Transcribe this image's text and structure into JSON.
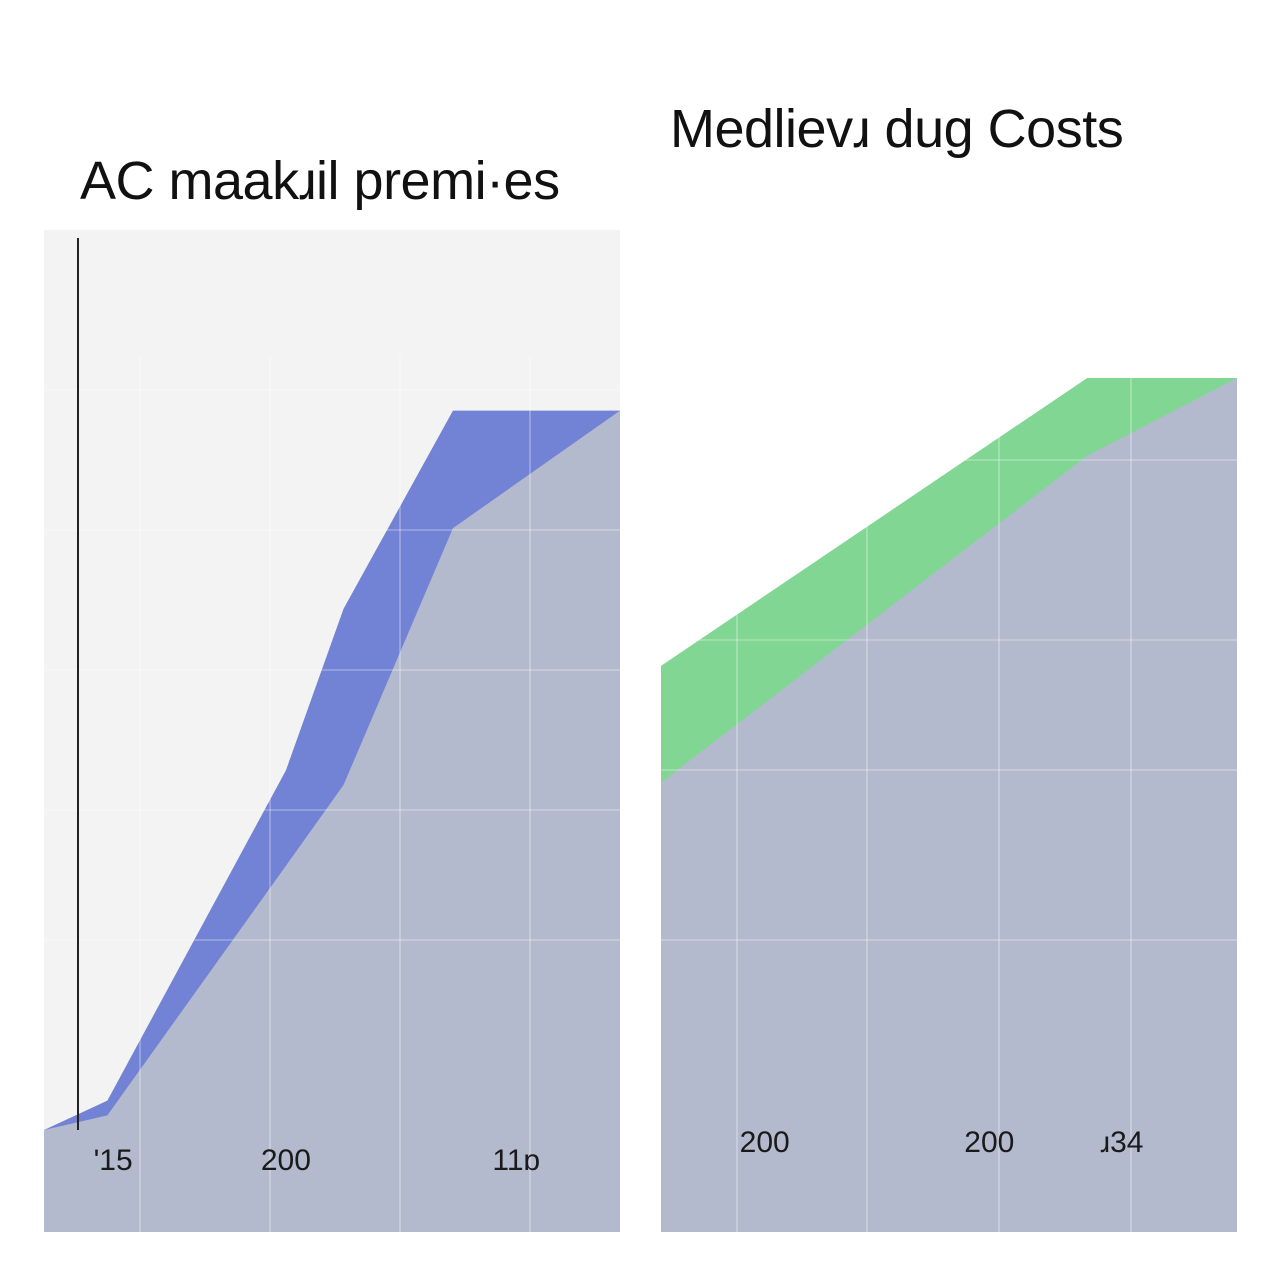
{
  "colors": {
    "left_fill": "#7282d4",
    "right_fill": "#82d693",
    "base_fill": "#b3bacd",
    "plot_bg": "#f3f3f3",
    "grid": "#c4cad9"
  },
  "chart_data": [
    {
      "type": "area",
      "title": "AC maakɹil premi·es",
      "xlabel": "",
      "ylabel": "",
      "xticks": [
        "ʹ15",
        "200",
        "11ɒ"
      ],
      "xlim": [
        0,
        10
      ],
      "ylim": [
        0,
        100
      ],
      "grid": true,
      "x": [
        0,
        1.1,
        4.2,
        5.2,
        7.1,
        10
      ],
      "series": [
        {
          "values": [
            0,
            4,
            49,
            71,
            98,
            98
          ]
        },
        {
          "values": [
            0,
            2,
            36,
            47,
            82,
            98
          ]
        }
      ]
    },
    {
      "type": "area",
      "title": "Medlievɹ dug Costs",
      "xlabel": "",
      "ylabel": "",
      "xticks": [
        "200",
        "200",
        "ɹ34"
      ],
      "xlim": [
        0,
        10
      ],
      "ylim": [
        0,
        100
      ],
      "grid": true,
      "x": [
        0,
        7.4,
        10
      ],
      "series": [
        {
          "values": [
            63,
            100,
            100
          ]
        },
        {
          "values": [
            48,
            90,
            100
          ]
        }
      ]
    }
  ]
}
